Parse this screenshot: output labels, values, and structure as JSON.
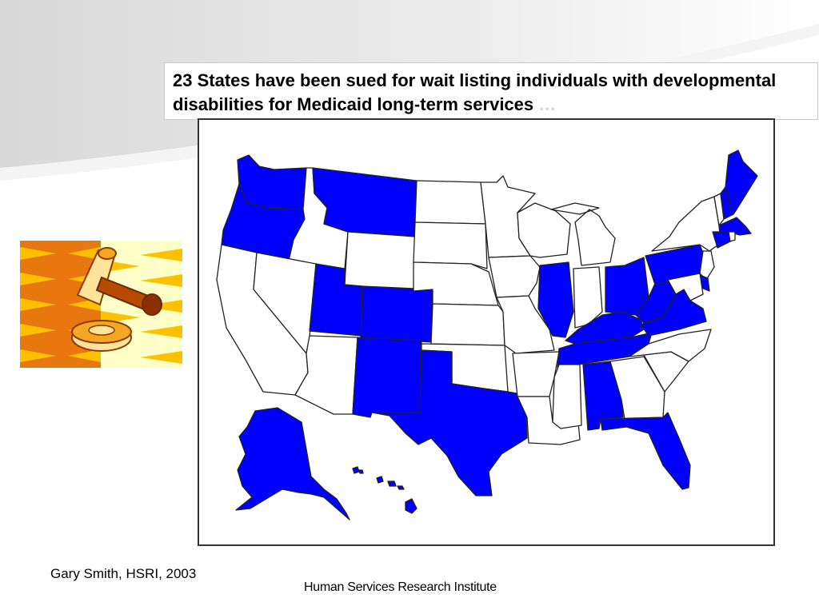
{
  "title": {
    "text": "23 States have been sued for wait listing individuals with developmental disabilities for Medicaid long-term services",
    "ellipsis": "…"
  },
  "map": {
    "highlight_color": "#0000ff",
    "default_color": "#ffffff",
    "highlighted_states": [
      "WA",
      "OR",
      "MT",
      "UT",
      "CO",
      "NM",
      "TX",
      "IL",
      "TN",
      "AL",
      "FL",
      "OH",
      "WV",
      "VA",
      "KY",
      "PA",
      "DE",
      "CT",
      "MA",
      "ME",
      "NH",
      "AK",
      "HI"
    ]
  },
  "credit": "Gary Smith, HSRI, 2003",
  "footer": "Human Services Research Institute"
}
